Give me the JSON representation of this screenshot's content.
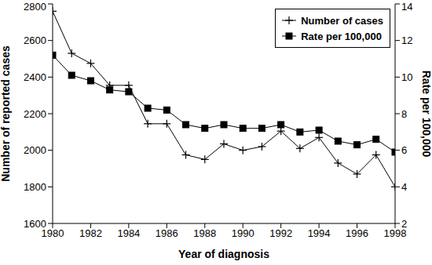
{
  "chart_data": {
    "type": "line",
    "xlabel": "Year of diagnosis",
    "ylabel": "Number of reported cases",
    "y2label": "Rate per 100,000",
    "x": [
      1980,
      1981,
      1982,
      1983,
      1984,
      1985,
      1986,
      1987,
      1988,
      1989,
      1990,
      1991,
      1992,
      1993,
      1994,
      1995,
      1996,
      1997,
      1998
    ],
    "xlim": [
      1980,
      1998
    ],
    "xticks": [
      1980,
      1982,
      1984,
      1986,
      1988,
      1990,
      1992,
      1994,
      1996,
      1998
    ],
    "ylim": [
      1600,
      2800
    ],
    "yticks": [
      1600,
      1800,
      2000,
      2200,
      2400,
      2600,
      2800
    ],
    "y2lim": [
      2,
      14
    ],
    "y2ticks": [
      2,
      4,
      6,
      8,
      10,
      12,
      14
    ],
    "legend": "upper right",
    "series": [
      {
        "name": "Number of cases",
        "color": "#000000",
        "marker": "plus",
        "values": [
          2760,
          2530,
          2475,
          2355,
          2355,
          2145,
          2145,
          1975,
          1950,
          2035,
          2000,
          2020,
          2105,
          2010,
          2070,
          1930,
          1870,
          1975,
          1800
        ]
      },
      {
        "name": "Rate per 100,000",
        "color": "#000000",
        "marker": "square",
        "axis": "y2",
        "values": [
          11.2,
          10.1,
          9.8,
          9.3,
          9.2,
          8.3,
          8.2,
          7.4,
          7.2,
          7.4,
          7.2,
          7.2,
          7.4,
          7.0,
          7.1,
          6.5,
          6.3,
          6.6,
          5.9
        ]
      }
    ]
  }
}
